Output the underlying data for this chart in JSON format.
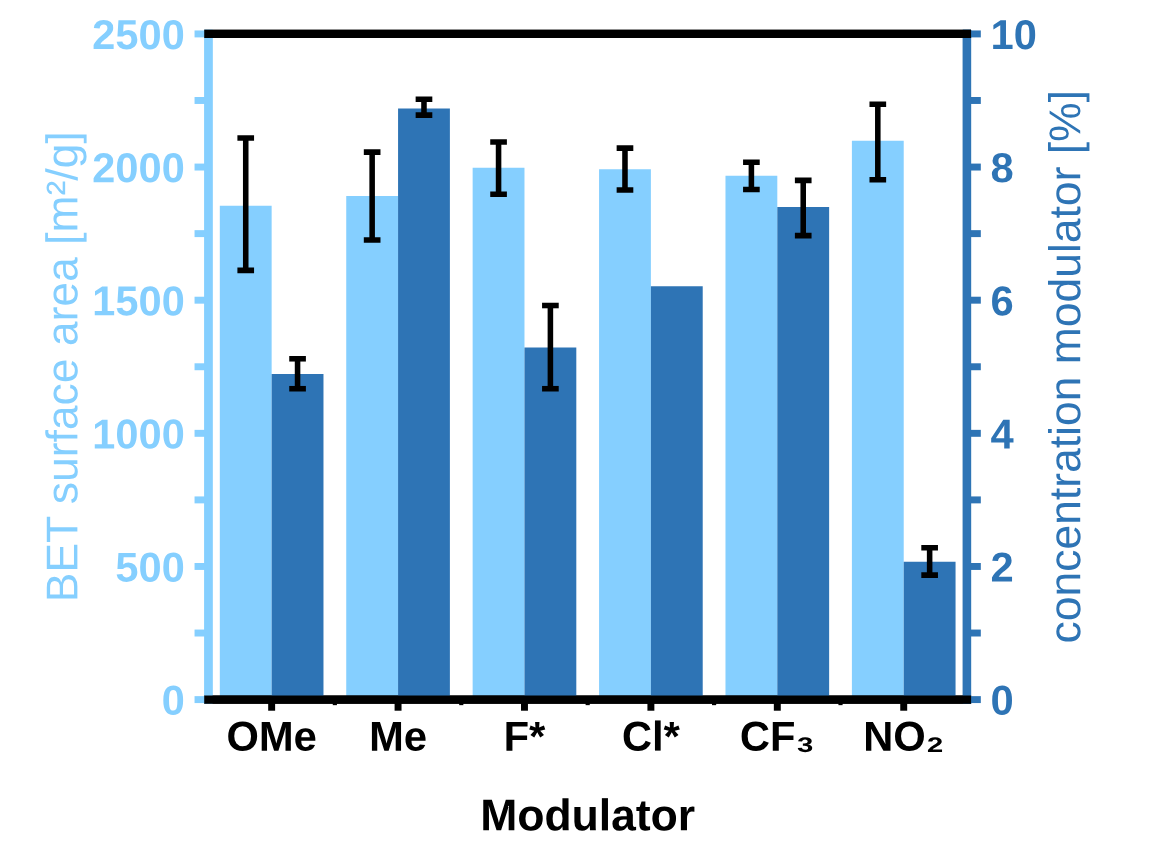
{
  "chart_data": {
    "type": "bar",
    "xlabel": "Modulator",
    "ylabel": "BET surface area [m²/g]",
    "y2label": "concentration modulator [%]",
    "categories": [
      "OMe",
      "Me",
      "F*",
      "Cl*",
      "CF₃",
      "NO₂"
    ],
    "series": [
      {
        "color": "#85cfff",
        "values": [
          1855,
          1891,
          1997,
          1992,
          1967,
          2099
        ],
        "errors": [
          [
            1612,
            2109
          ],
          [
            1726,
            2056
          ],
          [
            1898,
            2094
          ],
          [
            1914,
            2071
          ],
          [
            1916,
            2018
          ],
          [
            1952,
            2236
          ]
        ]
      },
      {
        "color": "#2e74b5",
        "axis": "y2",
        "values": [
          4.89,
          8.88,
          5.29,
          6.21,
          7.4,
          2.07
        ],
        "errors": [
          [
            4.67,
            5.12
          ],
          [
            8.78,
            9.02
          ],
          [
            4.67,
            5.92
          ],
          null,
          [
            6.97,
            7.8
          ],
          [
            1.87,
            2.28
          ]
        ]
      }
    ],
    "ylim": [
      0,
      2500
    ],
    "yticks": [
      0,
      {
        "value": 250,
        "label": null
      },
      500,
      {
        "value": 750,
        "label": null
      },
      1000,
      {
        "value": 1250,
        "label": null
      },
      1500,
      {
        "value": 1750,
        "label": null
      },
      2000,
      {
        "value": 2250,
        "label": null
      },
      2500
    ],
    "y2lim": [
      0,
      10
    ],
    "y2ticks": [
      0,
      {
        "value": 1,
        "label": null
      },
      2,
      {
        "value": 3,
        "label": null
      },
      4,
      {
        "value": 5,
        "label": null
      },
      6,
      {
        "value": 7,
        "label": null
      },
      8,
      {
        "value": 9,
        "label": null
      },
      10
    ],
    "grid": false,
    "legend": false
  }
}
